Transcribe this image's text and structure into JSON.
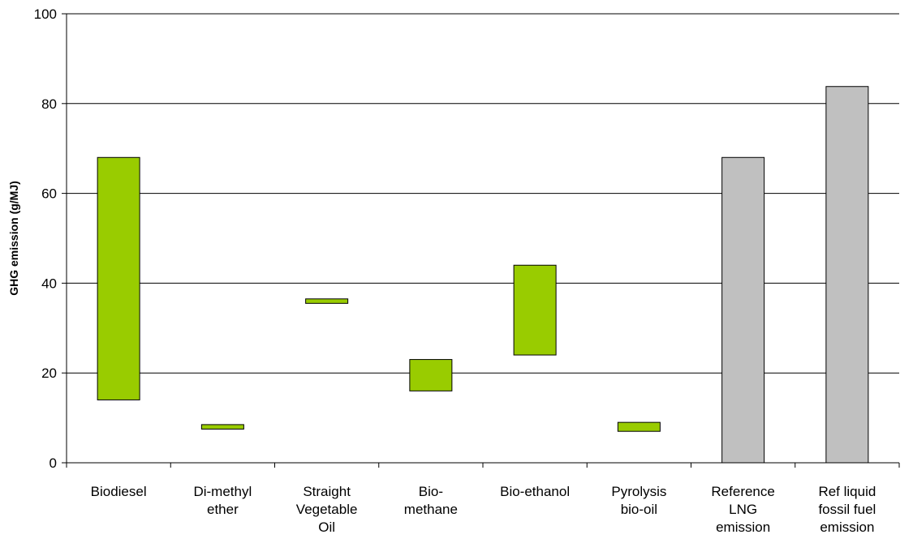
{
  "chart_data": {
    "type": "bar",
    "subtype": "floating-range",
    "ylabel": "GHG emission (g/MJ)",
    "xlabel": "",
    "title": "",
    "ylim": [
      0,
      100
    ],
    "yticks": [
      "0",
      "20",
      "40",
      "60",
      "80",
      "100"
    ],
    "grid": "horizontal",
    "legend": "none",
    "colors": {
      "bio": "#99cc00",
      "reference": "#c0c0c0",
      "border": "#000000"
    },
    "bars": [
      {
        "label": [
          "Biodiesel"
        ],
        "low": 14,
        "high": 68,
        "group": "bio"
      },
      {
        "label": [
          "Di-methyl",
          "ether"
        ],
        "low": 7.5,
        "high": 8.5,
        "group": "bio"
      },
      {
        "label": [
          "Straight",
          "Vegetable",
          "Oil"
        ],
        "low": 35.5,
        "high": 36.5,
        "group": "bio"
      },
      {
        "label": [
          "Bio-",
          "methane"
        ],
        "low": 16,
        "high": 23,
        "group": "bio"
      },
      {
        "label": [
          "Bio-ethanol"
        ],
        "low": 24,
        "high": 44,
        "group": "bio"
      },
      {
        "label": [
          "Pyrolysis",
          "bio-oil"
        ],
        "low": 7,
        "high": 9,
        "group": "bio"
      },
      {
        "label": [
          "Reference",
          "LNG",
          "emission"
        ],
        "low": 0,
        "high": 68,
        "group": "reference"
      },
      {
        "label": [
          "Ref liquid",
          "fossil fuel",
          "emission"
        ],
        "low": 0,
        "high": 83.8,
        "group": "reference"
      }
    ]
  }
}
